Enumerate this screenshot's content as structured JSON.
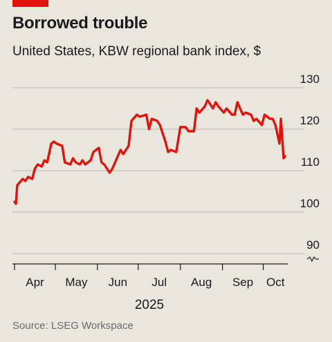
{
  "header": {
    "title": "Borrowed trouble",
    "subtitle": "United States, KBW regional bank index, $"
  },
  "footer": {
    "source": "Source: LSEG Workspace"
  },
  "colors": {
    "line": "#e3120b",
    "accent": "#e3120b",
    "grid": "#b8b5ad",
    "background": "#e9e6de"
  },
  "chart_data": {
    "type": "line",
    "title": "Borrowed trouble",
    "subtitle": "United States, KBW regional bank index, $",
    "ylabel": "",
    "xlabel": "2025",
    "ylim": [
      90,
      130
    ],
    "yticks": [
      90,
      100,
      110,
      120,
      130
    ],
    "y_axis_side": "right",
    "y_axis_break": true,
    "grid": "horizontal",
    "x_tick_labels": [
      "Apr",
      "May",
      "Jun",
      "Jul",
      "Aug",
      "Sep",
      "Oct"
    ],
    "x_range": [
      "2025-04-01",
      "2025-10-17"
    ],
    "x_ticks": [
      "2025-04-01",
      "2025-05-01",
      "2025-06-01",
      "2025-07-01",
      "2025-08-01",
      "2025-09-01",
      "2025-10-01"
    ],
    "series": [
      {
        "x": [
          "2025-04-01",
          "2025-04-02",
          "2025-04-03",
          "2025-04-07",
          "2025-04-09",
          "2025-04-11",
          "2025-04-14",
          "2025-04-16",
          "2025-04-18",
          "2025-04-21",
          "2025-04-23",
          "2025-04-25",
          "2025-04-28",
          "2025-04-30",
          "2025-05-02",
          "2025-05-06",
          "2025-05-08",
          "2025-05-12",
          "2025-05-14",
          "2025-05-16",
          "2025-05-19",
          "2025-05-21",
          "2025-05-23",
          "2025-05-27",
          "2025-05-29",
          "2025-06-02",
          "2025-06-04",
          "2025-06-06",
          "2025-06-10",
          "2025-06-12",
          "2025-06-16",
          "2025-06-18",
          "2025-06-20",
          "2025-06-24",
          "2025-06-26",
          "2025-06-30",
          "2025-07-02",
          "2025-07-07",
          "2025-07-09",
          "2025-07-11",
          "2025-07-15",
          "2025-07-17",
          "2025-07-21",
          "2025-07-23",
          "2025-07-25",
          "2025-07-29",
          "2025-08-01",
          "2025-08-05",
          "2025-08-07",
          "2025-08-11",
          "2025-08-13",
          "2025-08-15",
          "2025-08-19",
          "2025-08-21",
          "2025-08-25",
          "2025-08-27",
          "2025-08-29",
          "2025-09-02",
          "2025-09-04",
          "2025-09-08",
          "2025-09-10",
          "2025-09-12",
          "2025-09-16",
          "2025-09-18",
          "2025-09-22",
          "2025-09-24",
          "2025-09-26",
          "2025-09-30",
          "2025-10-02",
          "2025-10-06",
          "2025-10-08",
          "2025-10-10",
          "2025-10-13",
          "2025-10-14",
          "2025-10-16",
          "2025-10-17"
        ],
        "values": [
          102.5,
          102.0,
          106.5,
          108.0,
          107.5,
          108.5,
          108.0,
          110.5,
          111.5,
          111.0,
          112.5,
          112.0,
          116.5,
          117.0,
          116.5,
          116.0,
          112.0,
          111.5,
          113.0,
          112.0,
          111.5,
          112.5,
          111.5,
          112.5,
          114.5,
          115.5,
          112.0,
          111.5,
          109.5,
          110.5,
          113.5,
          115.0,
          114.0,
          116.0,
          122.0,
          123.5,
          123.0,
          123.5,
          120.0,
          122.5,
          122.0,
          121.0,
          117.0,
          114.5,
          115.0,
          114.5,
          120.5,
          120.5,
          119.5,
          119.5,
          125.0,
          124.0,
          125.5,
          127.0,
          125.0,
          126.5,
          125.5,
          124.0,
          125.0,
          123.5,
          123.5,
          126.5,
          123.5,
          124.0,
          123.5,
          122.0,
          122.5,
          121.0,
          123.5,
          122.5,
          122.5,
          121.0,
          116.5,
          122.5,
          113.0,
          113.5
        ]
      }
    ]
  }
}
